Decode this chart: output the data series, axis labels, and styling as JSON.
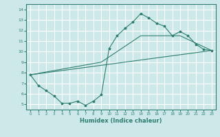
{
  "xlabel": "Humidex (Indice chaleur)",
  "ylabel": "",
  "bg_color": "#cce8e8",
  "grid_color": "#ffffff",
  "line_color": "#2e7d6e",
  "xlim": [
    -0.5,
    23.5
  ],
  "ylim": [
    4.5,
    14.5
  ],
  "xticks": [
    0,
    1,
    2,
    3,
    4,
    5,
    6,
    7,
    8,
    9,
    10,
    11,
    12,
    13,
    14,
    15,
    16,
    17,
    18,
    19,
    20,
    21,
    22,
    23
  ],
  "yticks": [
    5,
    6,
    7,
    8,
    9,
    10,
    11,
    12,
    13,
    14
  ],
  "line1_x": [
    0,
    1,
    2,
    3,
    4,
    5,
    6,
    7,
    8,
    9,
    10,
    11,
    12,
    13,
    14,
    15,
    16,
    17,
    18,
    19,
    20,
    21,
    22,
    23
  ],
  "line1_y": [
    7.8,
    6.8,
    6.3,
    5.8,
    5.1,
    5.1,
    5.3,
    4.9,
    5.3,
    5.9,
    10.3,
    11.5,
    12.2,
    12.8,
    13.6,
    13.2,
    12.7,
    12.4,
    11.5,
    11.9,
    11.5,
    10.7,
    10.2,
    10.1
  ],
  "line2_x": [
    0,
    23
  ],
  "line2_y": [
    7.8,
    10.1
  ],
  "line3_x": [
    0,
    9,
    14,
    19,
    23
  ],
  "line3_y": [
    7.8,
    9.0,
    11.5,
    11.5,
    10.1
  ]
}
